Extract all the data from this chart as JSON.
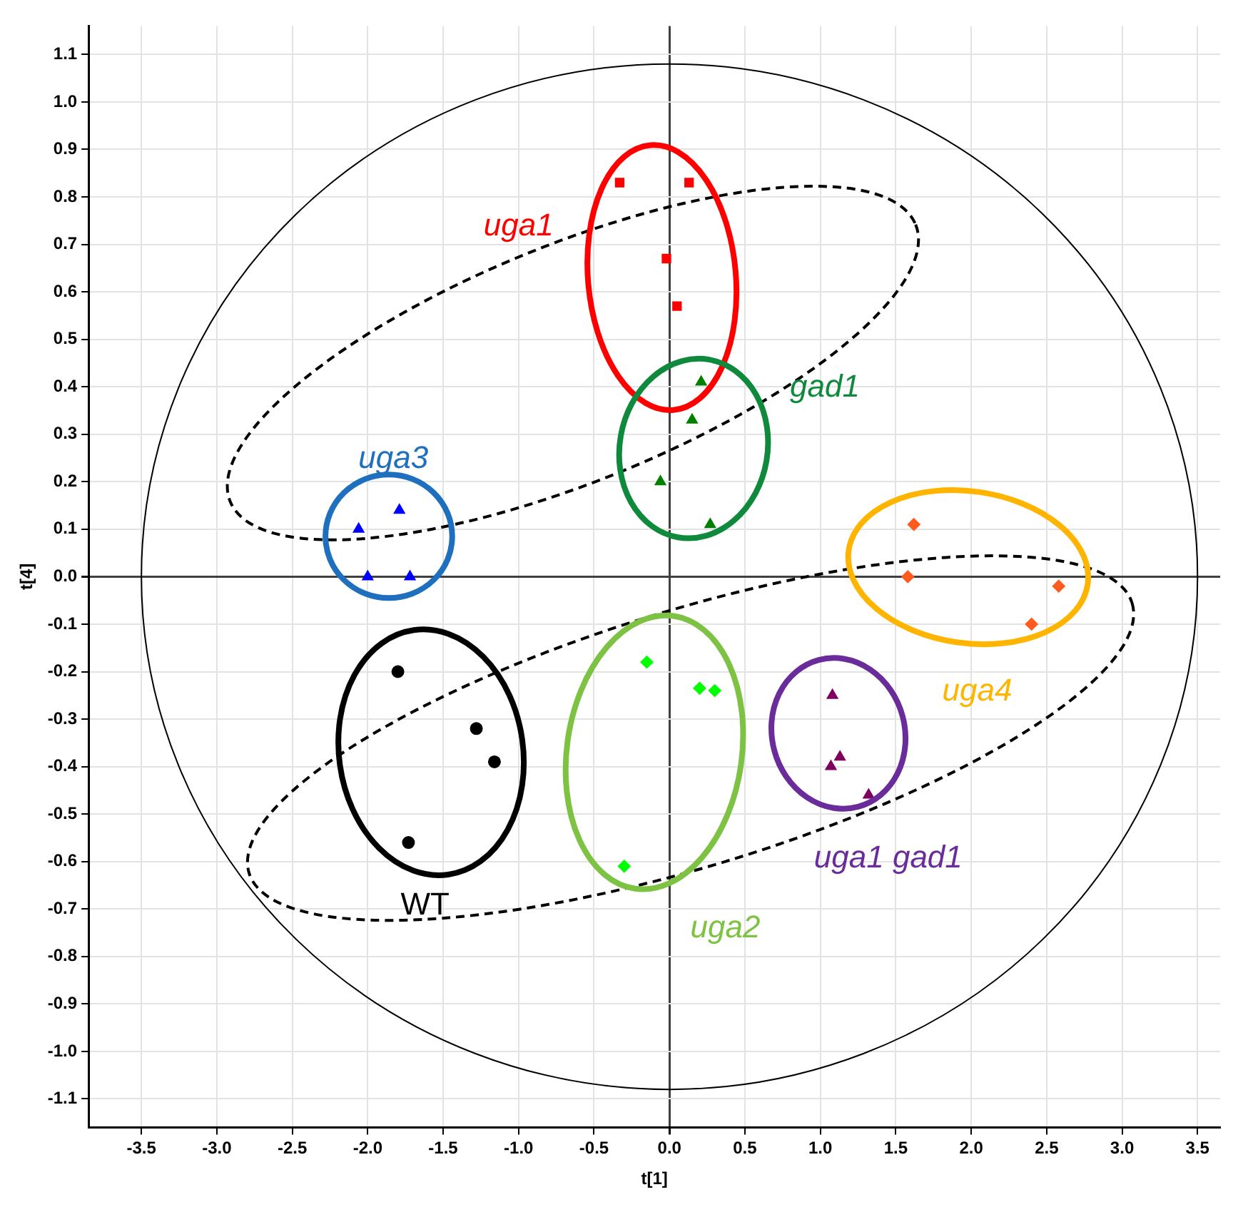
{
  "chart_data": {
    "type": "scatter",
    "xlabel": "t[1]",
    "ylabel": "t[4]",
    "series": [
      {
        "name": "uga1",
        "color": "#ff0000",
        "marker": "square",
        "x": [
          -0.33,
          0.13,
          -0.02,
          0.05
        ],
        "values": [
          0.83,
          0.83,
          0.67,
          0.57
        ]
      },
      {
        "name": "gad1",
        "color": "#008000",
        "marker": "triangle",
        "x": [
          0.21,
          0.15,
          -0.06,
          0.27
        ],
        "values": [
          0.41,
          0.33,
          0.2,
          0.11
        ]
      },
      {
        "name": "uga3",
        "color": "#0000ff",
        "marker": "triangle",
        "x": [
          -1.79,
          -2.06,
          -2.0,
          -1.72
        ],
        "values": [
          0.14,
          0.1,
          0.0,
          0.0
        ]
      },
      {
        "name": "WT",
        "color": "#000000",
        "marker": "circle",
        "x": [
          -1.8,
          -1.28,
          -1.16,
          -1.73
        ],
        "values": [
          -0.2,
          -0.32,
          -0.39,
          -0.56
        ]
      },
      {
        "name": "uga2",
        "color": "#00ff00",
        "marker": "diamond",
        "x": [
          -0.15,
          0.2,
          0.3,
          -0.3
        ],
        "values": [
          -0.18,
          -0.235,
          -0.24,
          -0.61
        ]
      },
      {
        "name": "uga1 gad1",
        "color": "#800060",
        "marker": "triangle",
        "x": [
          1.08,
          1.13,
          1.07,
          1.32
        ],
        "values": [
          -0.25,
          -0.38,
          -0.4,
          -0.46
        ]
      },
      {
        "name": "uga4",
        "color": "#ff5a1f",
        "marker": "diamond",
        "x": [
          1.62,
          1.58,
          2.58,
          2.4
        ],
        "values": [
          0.11,
          0.0,
          -0.02,
          -0.1
        ]
      }
    ],
    "xlim": [
      -3.85,
      3.65
    ],
    "xticks": [
      {
        "value": -3.5,
        "label": "-3.5"
      },
      {
        "value": -3,
        "label": "-3.0"
      },
      {
        "value": -2.5,
        "label": "-2.5"
      },
      {
        "value": -2,
        "label": "-2.0"
      },
      {
        "value": -1.5,
        "label": "-1.5"
      },
      {
        "value": -1,
        "label": "-1.0"
      },
      {
        "value": -0.5,
        "label": "-0.5"
      },
      {
        "value": 0,
        "label": "0.0"
      },
      {
        "value": 0.5,
        "label": "0.5"
      },
      {
        "value": 1,
        "label": "1.0"
      },
      {
        "value": 1.5,
        "label": "1.5"
      },
      {
        "value": 2,
        "label": "2.0"
      },
      {
        "value": 2.5,
        "label": "2.5"
      },
      {
        "value": 3,
        "label": "3.0"
      },
      {
        "value": 3.5,
        "label": "3.5"
      }
    ],
    "ylim": [
      -1.16,
      1.16
    ],
    "yticks": [
      -1.1,
      {
        "value": -1,
        "label": "-1.0"
      },
      -0.9,
      -0.8,
      -0.7,
      -0.6,
      -0.5,
      -0.4,
      -0.3,
      -0.2,
      -0.1,
      {
        "value": 0,
        "label": "0.0"
      },
      0.1,
      0.2,
      0.3,
      0.4,
      0.5,
      0.6,
      0.7,
      0.8,
      0.9,
      {
        "value": 1,
        "label": "1.0"
      },
      1.1
    ],
    "grid": true,
    "legend": false
  }
}
